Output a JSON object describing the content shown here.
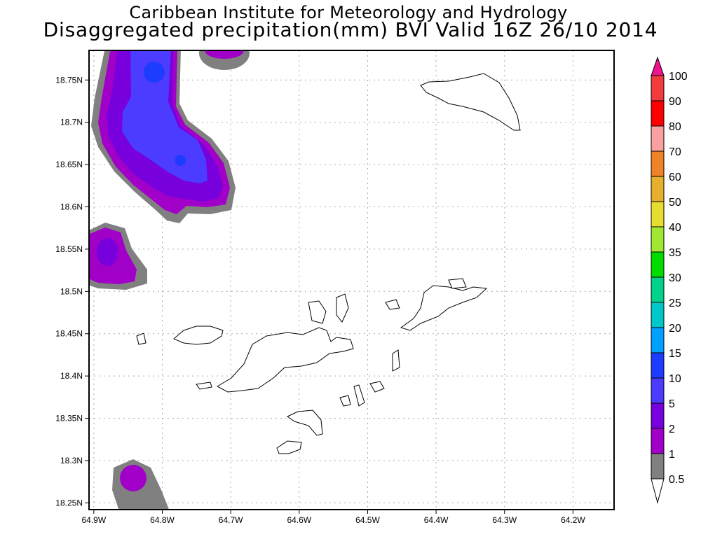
{
  "title": {
    "line1": "Caribbean Institute for Meteorology and Hydrology",
    "line2": "Disaggregated precipitation(mm) BVI Valid 16Z 26/10 2014"
  },
  "chart_data": {
    "type": "heatmap",
    "title": "Disaggregated precipitation(mm) BVI Valid 16Z 26/10 2014",
    "xlabel": "",
    "ylabel": "",
    "xlim": [
      -64.907,
      -64.14
    ],
    "ylim": [
      18.242,
      18.785
    ],
    "grid": true,
    "x_ticks": [
      {
        "value": -64.9,
        "label": "64.9W"
      },
      {
        "value": -64.8,
        "label": "64.8W"
      },
      {
        "value": -64.7,
        "label": "64.7W"
      },
      {
        "value": -64.6,
        "label": "64.6W"
      },
      {
        "value": -64.5,
        "label": "64.5W"
      },
      {
        "value": -64.4,
        "label": "64.4W"
      },
      {
        "value": -64.3,
        "label": "64.3W"
      },
      {
        "value": -64.2,
        "label": "64.2W"
      }
    ],
    "y_ticks": [
      {
        "value": 18.75,
        "label": "18.75N"
      },
      {
        "value": 18.7,
        "label": "18.7N"
      },
      {
        "value": 18.65,
        "label": "18.65N"
      },
      {
        "value": 18.6,
        "label": "18.6N"
      },
      {
        "value": 18.55,
        "label": "18.55N"
      },
      {
        "value": 18.5,
        "label": "18.5N"
      },
      {
        "value": 18.45,
        "label": "18.45N"
      },
      {
        "value": 18.4,
        "label": "18.4N"
      },
      {
        "value": 18.35,
        "label": "18.35N"
      },
      {
        "value": 18.3,
        "label": "18.3N"
      },
      {
        "value": 18.25,
        "label": "18.25N"
      }
    ],
    "colorbar": {
      "levels": [
        "0.5",
        "1",
        "2",
        "5",
        "10",
        "15",
        "20",
        "25",
        "30",
        "35",
        "40",
        "50",
        "60",
        "70",
        "80",
        "90",
        "100"
      ],
      "colors": [
        "#808080",
        "#a000c8",
        "#7800dc",
        "#4b3cff",
        "#1e3cff",
        "#00a0ff",
        "#00c8c8",
        "#00d28c",
        "#00dc00",
        "#a0e632",
        "#e6dc32",
        "#e6af2d",
        "#f08228",
        "#faa0a0",
        "#ff0000",
        "#f03c3c"
      ],
      "under_color": "#ffffff",
      "over_color": "#f0148c"
    },
    "precip_areas": [
      {
        "name": "northwest-cell",
        "max_level": "10-15",
        "centers": [
          [
            -64.81,
            18.76
          ],
          [
            -64.77,
            18.655
          ]
        ]
      },
      {
        "name": "north-cell",
        "max_level": "1-2",
        "centers": [
          [
            -64.71,
            18.78
          ]
        ]
      },
      {
        "name": "west-cell",
        "max_level": "2-5",
        "centers": [
          [
            -64.88,
            18.545
          ]
        ]
      },
      {
        "name": "southwest-cell",
        "max_level": "2-5",
        "centers": [
          [
            -64.84,
            18.28
          ]
        ]
      }
    ]
  }
}
